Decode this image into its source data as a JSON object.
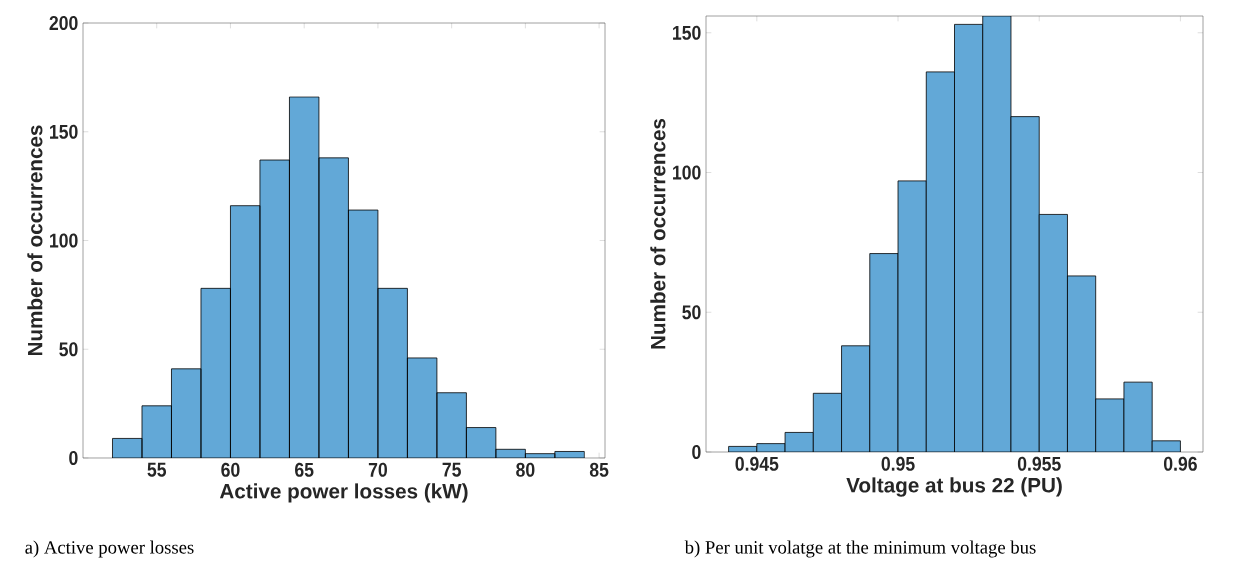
{
  "chart_data": [
    {
      "type": "histogram",
      "xlabel": "Active power losses (kW)",
      "ylabel": "Number of occurrences",
      "color": "#62a8d7",
      "bins": [
        52,
        54,
        56,
        58,
        60,
        62,
        64,
        66,
        68,
        70,
        72,
        74,
        76,
        78,
        80,
        82,
        84
      ],
      "values": [
        9,
        24,
        41,
        78,
        116,
        137,
        166,
        138,
        114,
        78,
        46,
        30,
        14,
        4,
        2,
        3
      ],
      "xlim": [
        50,
        85.4
      ],
      "ylim": [
        0,
        200
      ],
      "xticks": [
        55,
        60,
        65,
        70,
        75,
        80,
        85
      ],
      "yticks": [
        0,
        50,
        100,
        150,
        200
      ],
      "annotations": [
        "a) Active power losses"
      ]
    },
    {
      "type": "histogram",
      "xlabel": "Voltage at bus 22 (PU)",
      "ylabel": "Number of occurrences",
      "color": "#62a8d7",
      "bins": [
        0.944,
        0.945,
        0.946,
        0.947,
        0.948,
        0.949,
        0.95,
        0.951,
        0.952,
        0.953,
        0.954,
        0.955,
        0.956,
        0.957,
        0.958,
        0.959,
        0.96
      ],
      "values": [
        2,
        3,
        7,
        21,
        38,
        71,
        97,
        136,
        153,
        156,
        120,
        85,
        63,
        19,
        25,
        4
      ],
      "xlim": [
        0.9432,
        0.9608
      ],
      "ylim": [
        0,
        156
      ],
      "xticks": [
        0.945,
        0.95,
        0.955,
        0.96
      ],
      "yticks": [
        0,
        50,
        100,
        150
      ],
      "annotations": [
        "b) Per unit volatge at the minimum voltage bus"
      ]
    }
  ]
}
